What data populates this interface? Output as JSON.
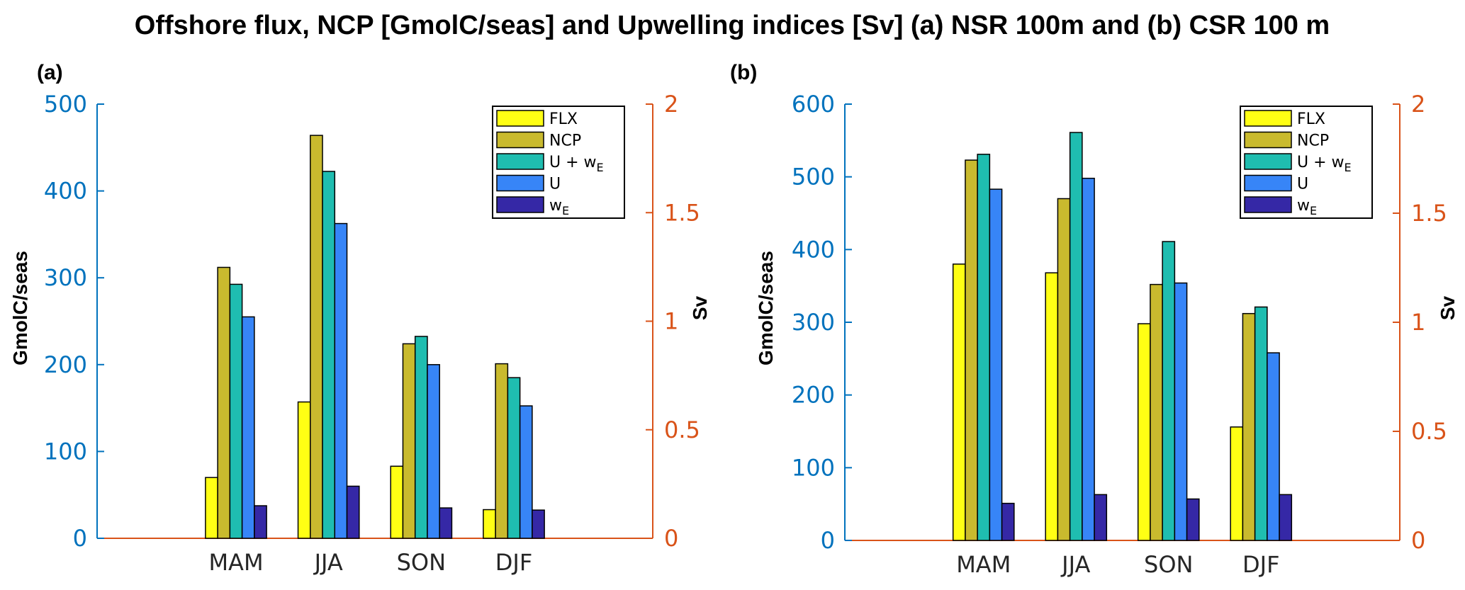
{
  "figure_title": "Offshore flux, NCP [GmolC/seas] and Upwelling indices [Sv] (a) NSR 100m and (b) CSR 100 m",
  "colors": {
    "left_axis": "#0072BD",
    "right_axis": "#D95319",
    "series": [
      "#FFFF14",
      "#C9BA2E",
      "#1FBDB0",
      "#3785F7",
      "#3528A6"
    ]
  },
  "legend_entries": [
    {
      "text": "FLX",
      "sub": ""
    },
    {
      "text": "NCP",
      "sub": ""
    },
    {
      "text": "U + w",
      "sub": "E"
    },
    {
      "text": "U",
      "sub": ""
    },
    {
      "text": "w",
      "sub": "E"
    }
  ],
  "chart_data": [
    {
      "type": "bar",
      "panel_label": "(a)",
      "title": "Offshore flux, NCP [GmolC/seas] and Upwelling indices [Sv] (a) NSR 100m",
      "categories": [
        "MAM",
        "JJA",
        "SON",
        "DJF"
      ],
      "ylabel": "GmolC/seas",
      "ylabel_right": "Sv",
      "ylim": [
        0,
        500
      ],
      "yticks": [
        0,
        100,
        200,
        300,
        400,
        500
      ],
      "ylim_right": [
        0,
        2
      ],
      "yticks_right": [
        "0",
        "0.5",
        "1",
        "1.5",
        "2"
      ],
      "legend_position": "top-right",
      "series": [
        {
          "name": "FLX",
          "axis": "left",
          "values": [
            70,
            157,
            83,
            33
          ]
        },
        {
          "name": "NCP",
          "axis": "left",
          "values": [
            312,
            464,
            224,
            201
          ]
        },
        {
          "name": "U + wE",
          "axis": "right",
          "values": [
            1.17,
            1.69,
            0.93,
            0.74
          ]
        },
        {
          "name": "U",
          "axis": "right",
          "values": [
            1.02,
            1.45,
            0.8,
            0.61
          ]
        },
        {
          "name": "wE",
          "axis": "right",
          "values": [
            0.15,
            0.24,
            0.14,
            0.13
          ]
        }
      ]
    },
    {
      "type": "bar",
      "panel_label": "(b)",
      "title": "Offshore flux, NCP [GmolC/seas] and Upwelling indices [Sv] (b) CSR 100 m",
      "categories": [
        "MAM",
        "JJA",
        "SON",
        "DJF"
      ],
      "ylabel": "GmolC/seas",
      "ylabel_right": "Sv",
      "ylim": [
        0,
        600
      ],
      "yticks": [
        0,
        100,
        200,
        300,
        400,
        500,
        600
      ],
      "ylim_right": [
        0,
        2
      ],
      "yticks_right": [
        "0",
        "0.5",
        "1",
        "1.5",
        "2"
      ],
      "legend_position": "top-right",
      "series": [
        {
          "name": "FLX",
          "axis": "left",
          "values": [
            380,
            368,
            298,
            156
          ]
        },
        {
          "name": "NCP",
          "axis": "left",
          "values": [
            523,
            470,
            352,
            312
          ]
        },
        {
          "name": "U + wE",
          "axis": "right",
          "values": [
            1.77,
            1.87,
            1.37,
            1.07
          ]
        },
        {
          "name": "U",
          "axis": "right",
          "values": [
            1.61,
            1.66,
            1.18,
            0.86
          ]
        },
        {
          "name": "wE",
          "axis": "right",
          "values": [
            0.17,
            0.21,
            0.19,
            0.21
          ]
        }
      ]
    }
  ]
}
